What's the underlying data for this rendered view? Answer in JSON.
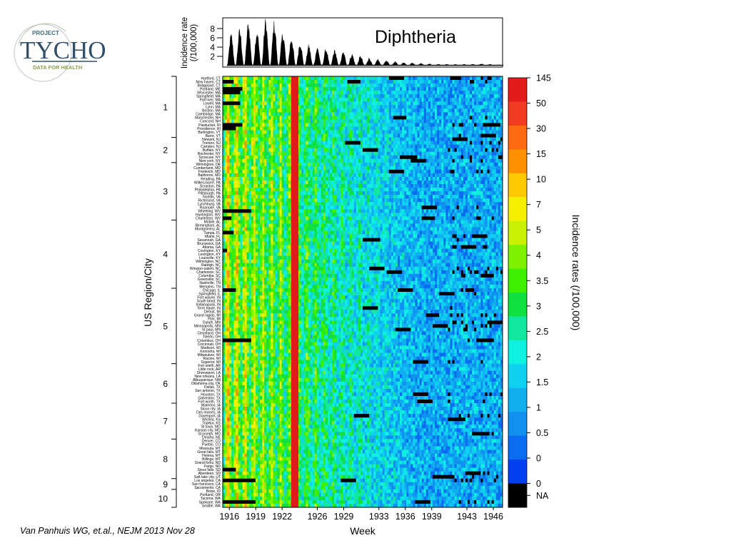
{
  "logo": {
    "top": "PROJECT",
    "name": "TYCHO",
    "tagline": "DATA FOR HEALTH"
  },
  "citation": "Van Panhuis WG, et.al., NEJM 2013 Nov 28",
  "chart_data": {
    "type": "heatmap",
    "title": "Diphtheria",
    "xlabel": "Week",
    "ylabel": "US Region/City",
    "colorbar_label": "Incidence rates (/100,000)",
    "x_ticks": [
      "1916",
      "1919",
      "1922",
      "1926",
      "1929",
      "1933",
      "1936",
      "1939",
      "1943",
      "1946"
    ],
    "region_ticks": [
      "1",
      "2",
      "3",
      "4",
      "5",
      "6",
      "7",
      "8",
      "9",
      "10"
    ],
    "colorbar_ticks": [
      "145",
      "50",
      "30",
      "15",
      "10",
      "7",
      "5",
      "4",
      "3.5",
      "3",
      "2.5",
      "2",
      "1.5",
      "1",
      "0.5",
      "0",
      "0",
      "NA"
    ],
    "colors": [
      "#e31a1c",
      "#f03b20",
      "#fd6a10",
      "#ff9000",
      "#ffc800",
      "#f5f000",
      "#c8f000",
      "#7ef000",
      "#3cf000",
      "#10e040",
      "#10e8a0",
      "#10f0e0",
      "#10d0f0",
      "#10b0f0",
      "#1090f0",
      "#0a6cf0",
      "#0040f0",
      "#000000"
    ],
    "marker_label_year": "1923",
    "inset": {
      "type": "area",
      "ylabel": "Incidence rate (/100,000)",
      "ylabel_line1": "Incidence rate",
      "ylabel_line2": "(/100,000)",
      "y_ticks": [
        "2",
        "4",
        "6",
        "8"
      ],
      "ylim": [
        0,
        10
      ],
      "yearly_peaks": [
        {
          "year": 1916,
          "peak": 6.5
        },
        {
          "year": 1917,
          "peak": 7.5
        },
        {
          "year": 1918,
          "peak": 9.0
        },
        {
          "year": 1919,
          "peak": 7.5
        },
        {
          "year": 1920,
          "peak": 9.5
        },
        {
          "year": 1921,
          "peak": 9.0
        },
        {
          "year": 1922,
          "peak": 7.0
        },
        {
          "year": 1923,
          "peak": 6.0
        },
        {
          "year": 1924,
          "peak": 5.0
        },
        {
          "year": 1925,
          "peak": 4.2
        },
        {
          "year": 1926,
          "peak": 3.8
        },
        {
          "year": 1927,
          "peak": 3.5
        },
        {
          "year": 1928,
          "peak": 3.2
        },
        {
          "year": 1929,
          "peak": 2.8
        },
        {
          "year": 1930,
          "peak": 2.4
        },
        {
          "year": 1931,
          "peak": 2.0
        },
        {
          "year": 1932,
          "peak": 1.6
        },
        {
          "year": 1933,
          "peak": 1.3
        },
        {
          "year": 1934,
          "peak": 1.1
        },
        {
          "year": 1935,
          "peak": 0.9
        },
        {
          "year": 1936,
          "peak": 0.7
        },
        {
          "year": 1937,
          "peak": 0.6
        },
        {
          "year": 1938,
          "peak": 0.5
        },
        {
          "year": 1939,
          "peak": 0.4
        },
        {
          "year": 1940,
          "peak": 0.3
        },
        {
          "year": 1941,
          "peak": 0.3
        },
        {
          "year": 1942,
          "peak": 0.3
        },
        {
          "year": 1943,
          "peak": 0.3
        },
        {
          "year": 1944,
          "peak": 0.3
        },
        {
          "year": 1945,
          "peak": 0.4
        },
        {
          "year": 1946,
          "peak": 0.3
        },
        {
          "year": 1947,
          "peak": 0.2
        }
      ]
    },
    "cities": [
      "Hartford, CT",
      "New haven, CT",
      "Bridgeport, CT",
      "Portland, ME",
      "Worcester, MA",
      "Springfield, MA",
      "Fall river, MA",
      "Lowell, MA",
      "Lynn, MA",
      "Boston, MA",
      "Cambridge, MA",
      "Manchester, NH",
      "Concord, NH",
      "Pawtucket, RI",
      "Providence, RI",
      "Burlington, VT",
      "Barre, VT",
      "Newark, NJ",
      "Trenton, NJ",
      "Camden, NJ",
      "Buffalo, NY",
      "Rochester, NY",
      "Syracuse, NY",
      "New york, NY",
      "Wilmington, DE",
      "Cumberland, MD",
      "Frederick, MD",
      "Baltimore, MD",
      "Reading, PA",
      "Wilkes-barre, PA",
      "Scranton, PA",
      "Philadelphia, PA",
      "Pittsburgh, PA",
      "Norfolk, VA",
      "Richmond, VA",
      "Lynchburg, VA",
      "Roanoke, VA",
      "Wheeling, WV",
      "Huntington, WV",
      "Charleston, WV",
      "Mobile, AL",
      "Birmingham, AL",
      "Montgomery, AL",
      "Tampa, FL",
      "Miami, FL",
      "Savannah, GA",
      "Brunswick, GA",
      "Atlanta, GA",
      "Covington, KY",
      "Lexington, KY",
      "Louisville, KY",
      "Wilmington, NC",
      "Raleigh, NC",
      "Winston-salem, NC",
      "Charleston, SC",
      "Columbia, SC",
      "Greenville, SC",
      "Nashville, TN",
      "Memphis, TN",
      "Chicago, IL",
      "Springfield, IL",
      "Fort wayne, IN",
      "South bend, IN",
      "Indianapolis, IN",
      "Terre haute, IN",
      "Detroit, MI",
      "Grand rapids, MI",
      "Flint, MI",
      "Duluth, MN",
      "Minneapolis, MN",
      "St paul, MN",
      "Cleveland, OH",
      "Toledo, OH",
      "Columbus, OH",
      "Cincinnati, OH",
      "Madison, WI",
      "Kenosha, WI",
      "Milwaukee, WI",
      "Racine, WI",
      "Superior, WI",
      "Fort smith, AR",
      "Little rock, AR",
      "Shreveport, LA",
      "New orleans, LA",
      "Albuquerque, NM",
      "Oklahoma city, OK",
      "Dallas, TX",
      "San antonio, TX",
      "Houston, TX",
      "Galveston, TX",
      "Fort worth, TX",
      "Waterloo, IA",
      "Sioux city, IA",
      "Des moines, IA",
      "Davenport, IA",
      "Wichita, KS",
      "Topeka, KS",
      "St louis, MO",
      "Kansas city, MO",
      "St joseph, MO",
      "Omaha, NE",
      "Denver, CO",
      "Pueblo, CO",
      "Missoula, MT",
      "Great falls, MT",
      "Helena, MT",
      "Billings, MT",
      "Grand forks, ND",
      "Fargo, ND",
      "Sioux falls, SD",
      "Aberdeen, SD",
      "Salt lake city, UT",
      "Los angeles, CA",
      "San francisco, CA",
      "Sacramento, CA",
      "Boise, ID",
      "Portland, OR",
      "Tacoma, WA",
      "Spokane, WA",
      "Seattle, WA"
    ],
    "region_city_counts": [
      17,
      7,
      16,
      19,
      21,
      11,
      10,
      11,
      3,
      5
    ]
  }
}
